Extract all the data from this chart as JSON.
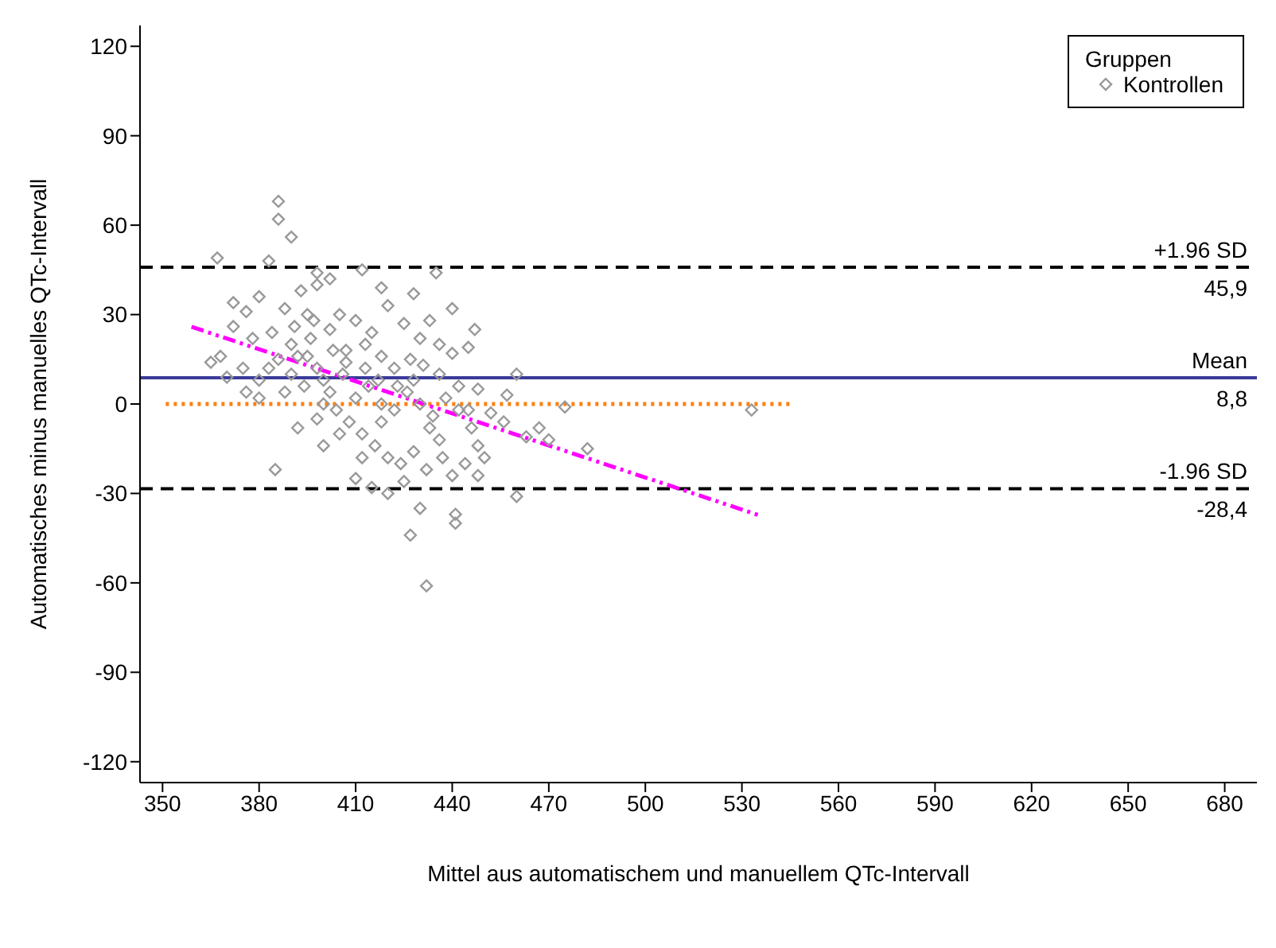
{
  "chart_data": {
    "type": "scatter",
    "xlabel": "Mittel aus automatischem und manuellem  QTc-Intervall",
    "ylabel": "Automatisches minus manuelles QTc-Intervall",
    "legend_title": "Gruppen",
    "legend": "top right",
    "marker": "diamond",
    "grid": false,
    "xlim": [
      343,
      690
    ],
    "xticks": [
      350,
      380,
      410,
      440,
      470,
      500,
      530,
      560,
      590,
      620,
      650,
      680
    ],
    "ylim": [
      -127,
      127
    ],
    "yticks": [
      -120,
      -90,
      -60,
      -30,
      0,
      30,
      60,
      90,
      120
    ],
    "series": [
      {
        "name": "Kontrollen",
        "color": "#999999",
        "x": [
          386,
          386,
          390,
          367,
          383,
          398,
          412,
          435,
          398,
          393,
          402,
          418,
          428,
          440,
          447,
          420,
          380,
          372,
          376,
          388,
          395,
          405,
          410,
          425,
          433,
          440,
          436,
          445,
          372,
          378,
          384,
          390,
          396,
          402,
          407,
          413,
          418,
          422,
          427,
          431,
          436,
          442,
          448,
          452,
          457,
          460,
          463,
          475,
          533,
          470,
          448,
          456,
          385,
          365,
          368,
          370,
          375,
          380,
          386,
          390,
          394,
          398,
          402,
          406,
          410,
          414,
          418,
          422,
          426,
          430,
          434,
          438,
          442,
          446,
          392,
          398,
          404,
          408,
          412,
          416,
          420,
          424,
          428,
          432,
          436,
          440,
          444,
          448,
          425,
          430,
          420,
          415,
          410,
          427,
          432,
          441,
          441,
          460,
          482,
          467,
          400,
          395,
          388,
          380,
          376,
          383,
          407,
          413,
          417,
          423,
          428,
          405,
          400,
          412,
          418,
          433,
          437,
          445,
          450,
          403,
          397,
          391,
          415,
          430,
          400,
          392
        ],
        "values": [
          68,
          62,
          56,
          49,
          48,
          44,
          45,
          44,
          40,
          38,
          42,
          39,
          37,
          32,
          25,
          33,
          36,
          34,
          31,
          32,
          30,
          30,
          28,
          27,
          28,
          17,
          20,
          19,
          26,
          22,
          24,
          20,
          22,
          25,
          18,
          20,
          16,
          12,
          15,
          13,
          10,
          6,
          5,
          -3,
          3,
          10,
          -11,
          -1,
          -2,
          -12,
          -14,
          -6,
          -22,
          14,
          16,
          9,
          12,
          8,
          15,
          10,
          6,
          12,
          4,
          10,
          2,
          6,
          0,
          -2,
          4,
          0,
          -4,
          2,
          -2,
          -8,
          -8,
          -5,
          -2,
          -6,
          -10,
          -14,
          -18,
          -20,
          -16,
          -22,
          -12,
          -24,
          -20,
          -24,
          -26,
          -35,
          -30,
          -28,
          -25,
          -44,
          -61,
          -37,
          -40,
          -31,
          -15,
          -8,
          0,
          16,
          4,
          2,
          4,
          12,
          14,
          12,
          8,
          6,
          8,
          -10,
          -14,
          -18,
          -6,
          -8,
          -18,
          -2,
          -18,
          18,
          28,
          26,
          24,
          22,
          8,
          16
        ]
      },
      {
        "type": "line",
        "color": "#ff7f0e",
        "line_style": "dotted",
        "marker": "none",
        "x": [
          351,
          546
        ],
        "values": [
          0,
          0
        ]
      },
      {
        "type": "line",
        "color": "#ff00ff",
        "line_style": "dashdot",
        "marker": "none",
        "x": [
          359,
          535
        ],
        "values": [
          25.9,
          -37.2
        ]
      }
    ],
    "ref_lines": [
      {
        "axis": "y",
        "value": 45.9,
        "label": "+1.96 SD",
        "color": "#000000",
        "line_style": "dashed"
      },
      {
        "axis": "y",
        "value": 8.8,
        "label": "Mean",
        "color": "#3a3a9a",
        "line_style": "solid"
      },
      {
        "axis": "y",
        "value": -28.4,
        "label": "-1.96 SD",
        "color": "#000000",
        "line_style": "dashed"
      }
    ],
    "annotations": [
      {
        "text": "45,9",
        "y": 45.9
      },
      {
        "text": "8,8",
        "y": 8.8
      },
      {
        "text": "-28,4",
        "y": -28.4
      }
    ]
  }
}
